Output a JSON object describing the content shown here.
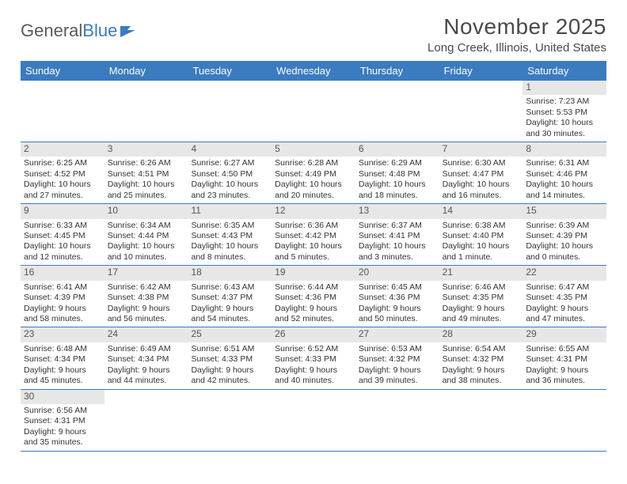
{
  "logo": {
    "part1": "General",
    "part2": "Blue"
  },
  "title": "November 2025",
  "location": "Long Creek, Illinois, United States",
  "colors": {
    "brand_blue": "#3b7bbf",
    "daynum_bg": "#e7e7e7",
    "text": "#333333",
    "header_text": "#4a4a4a"
  },
  "day_names": [
    "Sunday",
    "Monday",
    "Tuesday",
    "Wednesday",
    "Thursday",
    "Friday",
    "Saturday"
  ],
  "weeks": [
    [
      null,
      null,
      null,
      null,
      null,
      null,
      {
        "n": "1",
        "sr": "Sunrise: 7:23 AM",
        "ss": "Sunset: 5:53 PM",
        "dl": "Daylight: 10 hours and 30 minutes."
      }
    ],
    [
      {
        "n": "2",
        "sr": "Sunrise: 6:25 AM",
        "ss": "Sunset: 4:52 PM",
        "dl": "Daylight: 10 hours and 27 minutes."
      },
      {
        "n": "3",
        "sr": "Sunrise: 6:26 AM",
        "ss": "Sunset: 4:51 PM",
        "dl": "Daylight: 10 hours and 25 minutes."
      },
      {
        "n": "4",
        "sr": "Sunrise: 6:27 AM",
        "ss": "Sunset: 4:50 PM",
        "dl": "Daylight: 10 hours and 23 minutes."
      },
      {
        "n": "5",
        "sr": "Sunrise: 6:28 AM",
        "ss": "Sunset: 4:49 PM",
        "dl": "Daylight: 10 hours and 20 minutes."
      },
      {
        "n": "6",
        "sr": "Sunrise: 6:29 AM",
        "ss": "Sunset: 4:48 PM",
        "dl": "Daylight: 10 hours and 18 minutes."
      },
      {
        "n": "7",
        "sr": "Sunrise: 6:30 AM",
        "ss": "Sunset: 4:47 PM",
        "dl": "Daylight: 10 hours and 16 minutes."
      },
      {
        "n": "8",
        "sr": "Sunrise: 6:31 AM",
        "ss": "Sunset: 4:46 PM",
        "dl": "Daylight: 10 hours and 14 minutes."
      }
    ],
    [
      {
        "n": "9",
        "sr": "Sunrise: 6:33 AM",
        "ss": "Sunset: 4:45 PM",
        "dl": "Daylight: 10 hours and 12 minutes."
      },
      {
        "n": "10",
        "sr": "Sunrise: 6:34 AM",
        "ss": "Sunset: 4:44 PM",
        "dl": "Daylight: 10 hours and 10 minutes."
      },
      {
        "n": "11",
        "sr": "Sunrise: 6:35 AM",
        "ss": "Sunset: 4:43 PM",
        "dl": "Daylight: 10 hours and 8 minutes."
      },
      {
        "n": "12",
        "sr": "Sunrise: 6:36 AM",
        "ss": "Sunset: 4:42 PM",
        "dl": "Daylight: 10 hours and 5 minutes."
      },
      {
        "n": "13",
        "sr": "Sunrise: 6:37 AM",
        "ss": "Sunset: 4:41 PM",
        "dl": "Daylight: 10 hours and 3 minutes."
      },
      {
        "n": "14",
        "sr": "Sunrise: 6:38 AM",
        "ss": "Sunset: 4:40 PM",
        "dl": "Daylight: 10 hours and 1 minute."
      },
      {
        "n": "15",
        "sr": "Sunrise: 6:39 AM",
        "ss": "Sunset: 4:39 PM",
        "dl": "Daylight: 10 hours and 0 minutes."
      }
    ],
    [
      {
        "n": "16",
        "sr": "Sunrise: 6:41 AM",
        "ss": "Sunset: 4:39 PM",
        "dl": "Daylight: 9 hours and 58 minutes."
      },
      {
        "n": "17",
        "sr": "Sunrise: 6:42 AM",
        "ss": "Sunset: 4:38 PM",
        "dl": "Daylight: 9 hours and 56 minutes."
      },
      {
        "n": "18",
        "sr": "Sunrise: 6:43 AM",
        "ss": "Sunset: 4:37 PM",
        "dl": "Daylight: 9 hours and 54 minutes."
      },
      {
        "n": "19",
        "sr": "Sunrise: 6:44 AM",
        "ss": "Sunset: 4:36 PM",
        "dl": "Daylight: 9 hours and 52 minutes."
      },
      {
        "n": "20",
        "sr": "Sunrise: 6:45 AM",
        "ss": "Sunset: 4:36 PM",
        "dl": "Daylight: 9 hours and 50 minutes."
      },
      {
        "n": "21",
        "sr": "Sunrise: 6:46 AM",
        "ss": "Sunset: 4:35 PM",
        "dl": "Daylight: 9 hours and 49 minutes."
      },
      {
        "n": "22",
        "sr": "Sunrise: 6:47 AM",
        "ss": "Sunset: 4:35 PM",
        "dl": "Daylight: 9 hours and 47 minutes."
      }
    ],
    [
      {
        "n": "23",
        "sr": "Sunrise: 6:48 AM",
        "ss": "Sunset: 4:34 PM",
        "dl": "Daylight: 9 hours and 45 minutes."
      },
      {
        "n": "24",
        "sr": "Sunrise: 6:49 AM",
        "ss": "Sunset: 4:34 PM",
        "dl": "Daylight: 9 hours and 44 minutes."
      },
      {
        "n": "25",
        "sr": "Sunrise: 6:51 AM",
        "ss": "Sunset: 4:33 PM",
        "dl": "Daylight: 9 hours and 42 minutes."
      },
      {
        "n": "26",
        "sr": "Sunrise: 6:52 AM",
        "ss": "Sunset: 4:33 PM",
        "dl": "Daylight: 9 hours and 40 minutes."
      },
      {
        "n": "27",
        "sr": "Sunrise: 6:53 AM",
        "ss": "Sunset: 4:32 PM",
        "dl": "Daylight: 9 hours and 39 minutes."
      },
      {
        "n": "28",
        "sr": "Sunrise: 6:54 AM",
        "ss": "Sunset: 4:32 PM",
        "dl": "Daylight: 9 hours and 38 minutes."
      },
      {
        "n": "29",
        "sr": "Sunrise: 6:55 AM",
        "ss": "Sunset: 4:31 PM",
        "dl": "Daylight: 9 hours and 36 minutes."
      }
    ],
    [
      {
        "n": "30",
        "sr": "Sunrise: 6:56 AM",
        "ss": "Sunset: 4:31 PM",
        "dl": "Daylight: 9 hours and 35 minutes."
      },
      null,
      null,
      null,
      null,
      null,
      null
    ]
  ]
}
